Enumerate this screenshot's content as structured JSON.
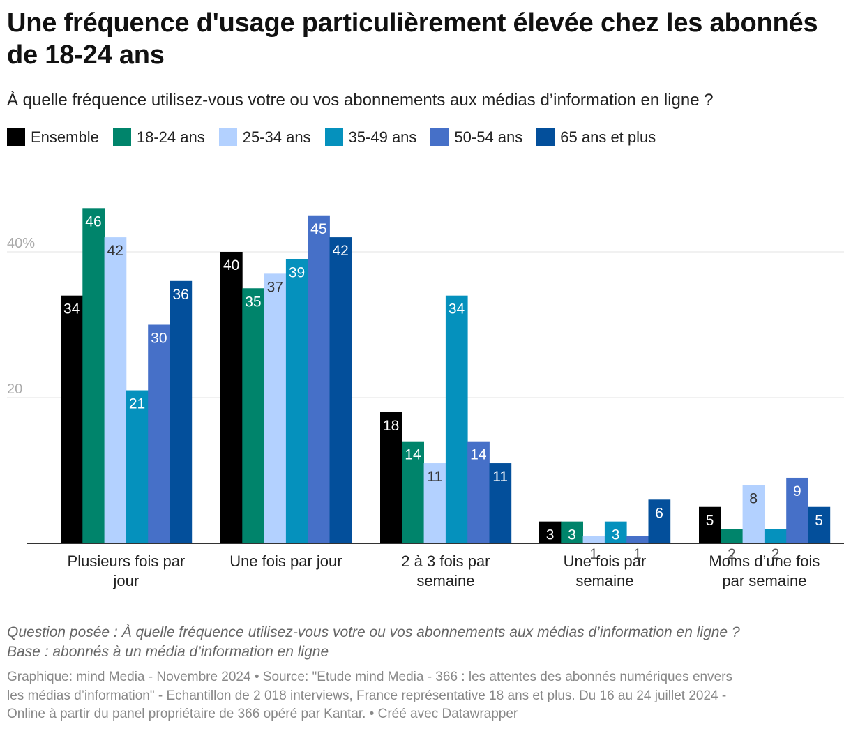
{
  "title": "Une fréquence d'usage particulièrement élevée chez les abonnés de 18-24 ans",
  "subtitle": "À quelle fréquence utilisez-vous votre ou vos abonnements aux médias d’information en ligne ?",
  "chart_data": {
    "type": "bar",
    "categories": [
      [
        "Plusieurs fois par",
        "jour"
      ],
      [
        "Une fois par jour"
      ],
      [
        "2 à 3 fois par",
        "semaine"
      ],
      [
        "Une fois par",
        "semaine"
      ],
      [
        "Moins d’une fois",
        "par semaine"
      ]
    ],
    "series": [
      {
        "name": "Ensemble",
        "color": "#000000",
        "label_color": "#ffffff",
        "values": [
          34,
          40,
          18,
          3,
          5
        ]
      },
      {
        "name": "18-24 ans",
        "color": "#00846b",
        "label_color": "#ffffff",
        "values": [
          46,
          35,
          14,
          3,
          2
        ]
      },
      {
        "name": "25-34 ans",
        "color": "#b3d1ff",
        "label_color": "#333333",
        "values": [
          42,
          37,
          11,
          1,
          8
        ]
      },
      {
        "name": "35-49 ans",
        "color": "#0591bd",
        "label_color": "#ffffff",
        "values": [
          21,
          39,
          34,
          3,
          2
        ]
      },
      {
        "name": "50-54 ans",
        "color": "#4670c8",
        "label_color": "#ffffff",
        "values": [
          30,
          45,
          14,
          1,
          9
        ]
      },
      {
        "name": "65 ans et plus",
        "color": "#034f9b",
        "label_color": "#ffffff",
        "values": [
          36,
          42,
          11,
          6,
          5
        ]
      }
    ],
    "y_ticks": [
      {
        "value": 20,
        "label": "20"
      },
      {
        "value": 40,
        "label": "40%"
      }
    ],
    "ylim": [
      0,
      48
    ],
    "grid": true,
    "legend_position": "top-left"
  },
  "footer": {
    "note_line1": "Question posée : À quelle fréquence utilisez-vous votre ou vos abonnements aux médias d’information en ligne ?",
    "note_line2": "Base : abonnés à un média d’information en ligne",
    "source_line1": "Graphique: mind Media - Novembre 2024 • Source: \"Etude mind Media - 366 : les attentes des abonnés numériques envers",
    "source_line2": "les médias d’information\" - Echantillon de 2 018 interviews, France représentative 18 ans et plus. Du 16 au 24 juillet 2024 -",
    "source_line3": "Online à partir du panel propriétaire de 366 opéré par Kantar. • Créé avec Datawrapper"
  }
}
